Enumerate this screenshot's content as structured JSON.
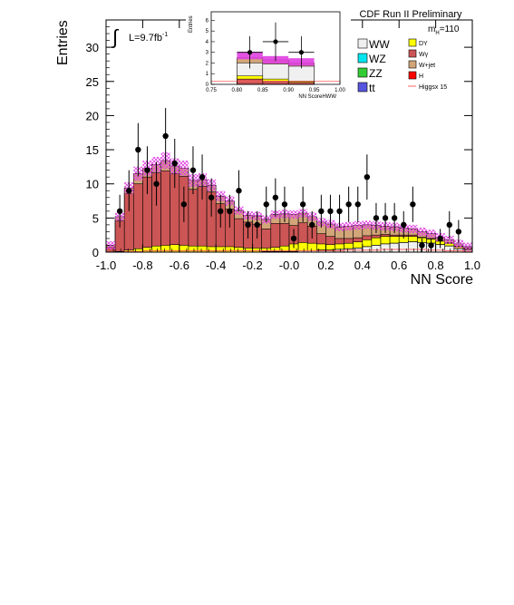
{
  "chart_data": {
    "type": "bar",
    "stacked": true,
    "title": "CDF Run II Preliminary",
    "xlabel": "NN Score",
    "ylabel": "Entries",
    "xlim": [
      -1.0,
      1.0
    ],
    "ylim": [
      0,
      34
    ],
    "x_ticks": [
      "-1.0",
      "-0.8",
      "-0.6",
      "-0.4",
      "-0.2",
      "-0.0",
      "0.2",
      "0.4",
      "0.6",
      "0.8",
      "1.0"
    ],
    "y_ticks": [
      "0",
      "5",
      "10",
      "15",
      "20",
      "25",
      "30"
    ],
    "luminosity_label": "L=9.7fb",
    "luminosity_exp": "-1",
    "integral_symbol": "∫",
    "mass_label_main": "m",
    "mass_label_sub": "H",
    "mass_label_value": "=110",
    "bin_edges_start": -1.0,
    "bin_width": 0.05,
    "series": [
      {
        "name": "WW",
        "color": "#f0f0f0",
        "values": [
          0,
          0,
          0,
          0,
          0,
          0,
          0,
          0,
          0,
          0,
          0,
          0,
          0,
          0,
          0,
          0,
          0,
          0.1,
          0.1,
          0.1,
          0.1,
          0.2,
          0.2,
          0.3,
          0.3,
          0.4,
          0.5,
          0.6,
          0.8,
          1.0,
          1.2,
          1.3,
          1.4,
          1.5,
          1.4,
          1.3,
          1.1,
          0.9,
          0.5,
          0.3
        ]
      },
      {
        "name": "WZ",
        "color": "#00e5ee",
        "values": [
          0,
          0,
          0,
          0,
          0,
          0,
          0,
          0,
          0,
          0,
          0,
          0,
          0,
          0,
          0,
          0,
          0,
          0,
          0,
          0,
          0,
          0,
          0,
          0,
          0,
          0,
          0,
          0,
          0,
          0,
          0,
          0,
          0,
          0,
          0,
          0,
          0,
          0,
          0,
          0
        ]
      },
      {
        "name": "ZZ",
        "color": "#33cc33",
        "values": [
          0,
          0,
          0,
          0,
          0,
          0,
          0,
          0,
          0,
          0,
          0,
          0,
          0,
          0,
          0,
          0,
          0,
          0,
          0,
          0,
          0,
          0,
          0,
          0,
          0,
          0,
          0,
          0,
          0,
          0,
          0,
          0,
          0,
          0,
          0,
          0,
          0,
          0,
          0,
          0
        ]
      },
      {
        "name": "tt",
        "color": "#5555dd",
        "values": [
          0,
          0,
          0,
          0,
          0,
          0,
          0,
          0,
          0,
          0,
          0,
          0,
          0,
          0,
          0,
          0,
          0,
          0,
          0,
          0,
          0,
          0,
          0,
          0,
          0,
          0,
          0,
          0,
          0,
          0,
          0,
          0,
          0,
          0,
          0,
          0,
          0,
          0,
          0,
          0
        ]
      },
      {
        "name": "DY",
        "color": "#ffff00",
        "values": [
          0,
          0.1,
          0.3,
          0.5,
          0.7,
          0.9,
          1.0,
          1.1,
          1.0,
          0.9,
          0.9,
          0.8,
          0.8,
          0.8,
          0.7,
          0.6,
          0.6,
          0.5,
          0.6,
          0.8,
          1.1,
          1.2,
          1.1,
          0.9,
          0.8,
          0.8,
          0.8,
          0.9,
          1.0,
          1.1,
          1.1,
          1.0,
          0.9,
          0.8,
          0.7,
          0.6,
          0.5,
          0.4,
          0.3,
          0.2
        ]
      },
      {
        "name": "Wγ",
        "color": "#cc5555",
        "values": [
          0.7,
          4.5,
          8.3,
          9.5,
          10.3,
          10.7,
          10.9,
          10.4,
          10.1,
          8.3,
          8.7,
          8.0,
          6.3,
          5.5,
          4.2,
          3.8,
          3.5,
          2.8,
          3.5,
          3.3,
          2.7,
          2.9,
          2.5,
          1.5,
          1.2,
          0.8,
          0.7,
          0.6,
          0.6,
          0.4,
          0.3,
          0.2,
          0.2,
          0.2,
          0.1,
          0.1,
          0.1,
          0.1,
          0.1,
          0.1
        ]
      },
      {
        "name": "W+jet",
        "color": "#d2a679",
        "values": [
          0.3,
          0.6,
          0.8,
          1.5,
          1.3,
          1.2,
          1.5,
          1.1,
          1.2,
          1.3,
          1.0,
          1.0,
          1.1,
          1.2,
          1.2,
          1.0,
          1.2,
          1.4,
          1.3,
          1.4,
          1.6,
          1.4,
          1.4,
          1.7,
          1.8,
          1.7,
          1.8,
          1.8,
          1.6,
          1.4,
          1.2,
          1.2,
          1.0,
          0.9,
          0.8,
          0.7,
          0.5,
          0.4,
          0.3,
          0.2
        ]
      },
      {
        "name": "H",
        "color": "#ff0000",
        "values": [
          0,
          0,
          0,
          0,
          0,
          0,
          0,
          0,
          0,
          0,
          0,
          0,
          0,
          0,
          0,
          0,
          0,
          0,
          0,
          0,
          0,
          0,
          0,
          0,
          0,
          0,
          0,
          0,
          0,
          0,
          0,
          0,
          0,
          0,
          0,
          0,
          0,
          0,
          0,
          0
        ]
      }
    ],
    "higgs_line": {
      "name": "Higgsx 15",
      "color": "#ff6666",
      "values": [
        0,
        0,
        0.1,
        0.1,
        0.2,
        0.2,
        0.2,
        0.2,
        0.2,
        0.2,
        0.2,
        0.2,
        0.2,
        0.2,
        0.2,
        0.2,
        0.2,
        0.2,
        0.2,
        0.2,
        0.2,
        0.2,
        0.2,
        0.2,
        0.2,
        0.2,
        0.3,
        0.3,
        0.3,
        0.3,
        0.4,
        0.4,
        0.4,
        0.4,
        0.4,
        0.3,
        0.3,
        0.2,
        0.2,
        0.1
      ]
    },
    "uncertainty_color": "#e040e0",
    "data_points": {
      "x": [
        -0.925,
        -0.875,
        -0.825,
        -0.775,
        -0.725,
        -0.675,
        -0.625,
        -0.575,
        -0.525,
        -0.475,
        -0.425,
        -0.375,
        -0.325,
        -0.275,
        -0.225,
        -0.175,
        -0.125,
        -0.075,
        -0.025,
        0.025,
        0.075,
        0.125,
        0.175,
        0.225,
        0.275,
        0.325,
        0.375,
        0.425,
        0.475,
        0.525,
        0.575,
        0.625,
        0.675,
        0.725,
        0.775,
        0.825,
        0.875,
        0.925
      ],
      "y": [
        6,
        9,
        15,
        12,
        10,
        17,
        13,
        7,
        12,
        11,
        8,
        6,
        6,
        9,
        4,
        4,
        7,
        8,
        7,
        2,
        7,
        4,
        6,
        6,
        6,
        7,
        7,
        11,
        5,
        5,
        5,
        4,
        7,
        1,
        1,
        2,
        4,
        3
      ],
      "err": [
        2.4,
        3.0,
        3.9,
        3.5,
        3.2,
        4.1,
        3.6,
        2.6,
        3.5,
        3.3,
        2.8,
        2.4,
        2.4,
        3.0,
        2.0,
        2.0,
        2.6,
        2.8,
        2.6,
        1.4,
        2.6,
        2.0,
        2.4,
        2.4,
        2.4,
        2.6,
        2.6,
        3.3,
        2.2,
        2.2,
        2.2,
        2.0,
        2.6,
        1.0,
        1.0,
        1.4,
        2.0,
        1.7
      ]
    },
    "inset": {
      "xlabel": "NN ScoreHWW",
      "ylabel": "Entries",
      "xlim": [
        0.75,
        1.0
      ],
      "ylim": [
        0,
        6.8
      ],
      "x_ticks": [
        "0.75",
        "0.80",
        "0.85",
        "0.90",
        "0.95",
        "1.00"
      ],
      "y_ticks": [
        "0",
        "1",
        "2",
        "3",
        "4",
        "5",
        "6"
      ],
      "bin_edges": [
        0.8,
        0.85,
        0.9,
        0.95
      ],
      "stack": [
        {
          "name": "Wγ",
          "color": "#cc5555",
          "values": [
            0.5,
            0.3,
            0.2
          ]
        },
        {
          "name": "DY",
          "color": "#ffff00",
          "values": [
            0.3,
            0.2,
            0.1
          ]
        },
        {
          "name": "WW",
          "color": "#f0f0f0",
          "values": [
            1.2,
            1.4,
            1.4
          ]
        },
        {
          "name": "W+jet",
          "color": "#d2a679",
          "values": [
            0.5,
            0.4,
            0.3
          ]
        }
      ],
      "band": [
        2.7,
        2.3,
        2.1
      ],
      "data_points": {
        "x": [
          0.825,
          0.875,
          0.925
        ],
        "y": [
          3,
          4,
          3
        ],
        "err": [
          1.5,
          1.8,
          1.5
        ]
      }
    },
    "legend_left": [
      {
        "label": "WW",
        "color": "#f0f0f0"
      },
      {
        "label": "WZ",
        "color": "#00e5ee"
      },
      {
        "label": "ZZ",
        "color": "#33cc33"
      },
      {
        "label": "tt",
        "color": "#5555dd"
      }
    ],
    "legend_right": [
      {
        "label": "DY",
        "color": "#ffff00"
      },
      {
        "label": "Wγ",
        "color": "#cc5555"
      },
      {
        "label": "W+jet",
        "color": "#d2a679"
      },
      {
        "label": "H",
        "color": "#ff0000"
      },
      {
        "label": "Higgsx 15",
        "color": "#ff6666",
        "style": "line"
      }
    ]
  }
}
